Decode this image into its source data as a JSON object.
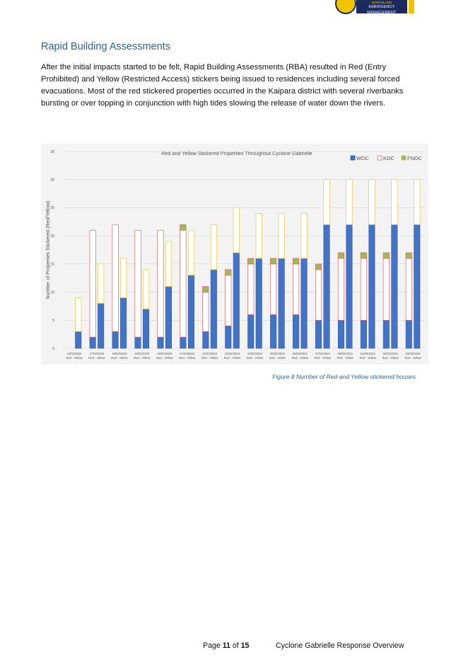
{
  "logo": {
    "badge_text": "CD",
    "line1": "NORTHLAND",
    "line2": "EMERGENCY MANAGEMENT"
  },
  "heading": "Rapid Building Assessments",
  "paragraph": "After the initial impacts started to be felt, Rapid Building Assessments (RBA) resulted in Red (Entry Prohibited) and Yellow (Restricted Access) stickers being issued to residences including several forced evacuations. Most of the red stickered properties occurred in the Kaipara district with several riverbanks bursting or over topping in conjunction with high tides slowing the release of water down the rivers.",
  "chart_data": {
    "type": "bar",
    "stacked": true,
    "title": "Red and Yellow Stickered Properties Throughout Cyclone Gabrielle",
    "xlabel": "",
    "ylabel": "Number of Properties Stickered (Red/Yellow)",
    "ylim": [
      0,
      35
    ],
    "yticks": [
      0,
      5,
      10,
      15,
      20,
      25,
      30,
      35
    ],
    "grid": true,
    "legend_position": "top-right",
    "categories": [
      "16/02/2023",
      "17/02/2023",
      "18/02/2023",
      "19/02/2023",
      "20/02/2023",
      "21/02/2023",
      "22/02/2023",
      "23/02/2023",
      "24/02/2023",
      "25/02/2023",
      "26/02/2023",
      "27/02/2023",
      "28/02/2023",
      "01/03/2023",
      "02/03/2023",
      "03/03/2023"
    ],
    "sub_label": "Red - Yellow",
    "sub_bars": [
      "Red",
      "Yellow"
    ],
    "series": [
      {
        "name": "WDC",
        "color": "#4472c4",
        "red": [
          0,
          2,
          3,
          2,
          2,
          2,
          3,
          4,
          6,
          6,
          6,
          5,
          5,
          5,
          5,
          5
        ],
        "yellow": [
          3,
          8,
          9,
          7,
          11,
          13,
          14,
          17,
          16,
          16,
          16,
          22,
          22,
          22,
          22,
          22
        ]
      },
      {
        "name": "KDC",
        "color": "#ffffff",
        "red": [
          0,
          19,
          19,
          19,
          19,
          19,
          7,
          9,
          9,
          9,
          9,
          9,
          11,
          11,
          11,
          11
        ],
        "yellow": [
          6,
          7,
          7,
          7,
          8,
          8,
          8,
          8,
          8,
          8,
          8,
          8,
          8,
          8,
          8,
          8
        ]
      },
      {
        "name": "FNDC",
        "color": "#9bbb59",
        "red": [
          0,
          0,
          0,
          0,
          0,
          1,
          1,
          1,
          1,
          1,
          1,
          1,
          1,
          1,
          1,
          1
        ],
        "yellow": [
          0,
          0,
          0,
          0,
          0,
          0,
          0,
          0,
          0,
          0,
          0,
          0,
          0,
          0,
          0,
          0
        ]
      }
    ]
  },
  "caption": "Figure 8 Number of Red and Yellow stickered houses",
  "footer": {
    "page_word": "Page",
    "page_num": "11",
    "of_word": "of",
    "page_total": "15",
    "doc_title": "Cyclone Gabrielle Response Overview"
  }
}
